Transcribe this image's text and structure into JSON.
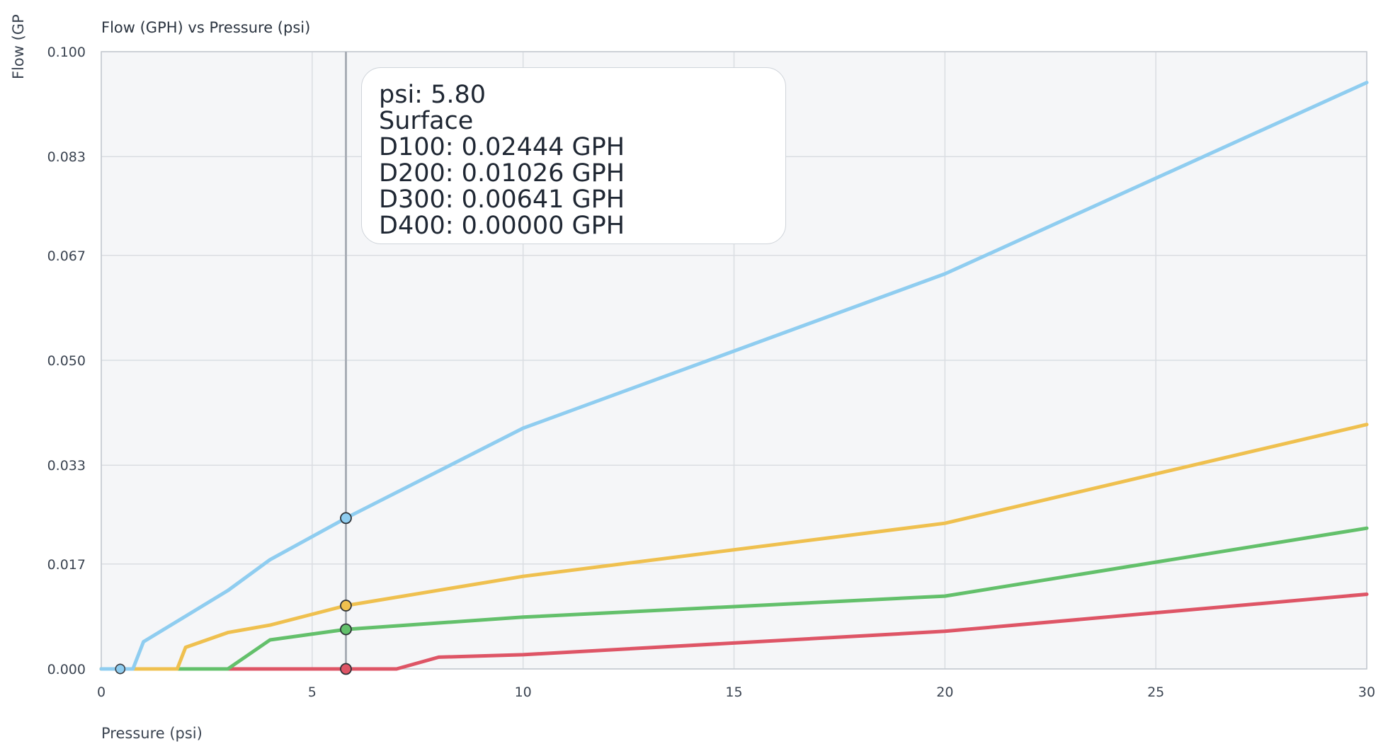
{
  "chart_data": {
    "type": "line",
    "title": "Flow (GPH) vs Pressure (psi)",
    "xlabel": "Pressure (psi)",
    "ylabel": "Flow (GP",
    "xlim": [
      0,
      30
    ],
    "ylim": [
      0,
      0.1
    ],
    "x_ticks": [
      "0",
      "5",
      "10",
      "15",
      "20",
      "25",
      "30"
    ],
    "y_ticks": [
      "0.000",
      "0.017",
      "0.033",
      "0.050",
      "0.067",
      "0.083",
      "0.100"
    ],
    "grid": true,
    "series": [
      {
        "name": "D100",
        "color": "#8fcdf0",
        "x": [
          0,
          0.75,
          1,
          3,
          4,
          5.8,
          10,
          20,
          30
        ],
        "y": [
          0,
          0,
          0.0044,
          0.0127,
          0.0177,
          0.02444,
          0.039,
          0.064,
          0.095
        ]
      },
      {
        "name": "D200",
        "color": "#efc04f",
        "x": [
          0,
          1.8,
          2,
          3,
          4,
          5.8,
          10,
          20,
          30
        ],
        "y": [
          0,
          0,
          0.0035,
          0.0059,
          0.0071,
          0.01026,
          0.015,
          0.0236,
          0.0396
        ]
      },
      {
        "name": "D300",
        "color": "#63c06b",
        "x": [
          0,
          3,
          4,
          5.8,
          10,
          20,
          30
        ],
        "y": [
          0,
          0,
          0.0047,
          0.00641,
          0.0084,
          0.0118,
          0.0228
        ]
      },
      {
        "name": "D400",
        "color": "#de5566",
        "x": [
          0,
          7,
          8,
          10,
          20,
          30
        ],
        "y": [
          0,
          0,
          0.0019,
          0.0023,
          0.0061,
          0.0121
        ]
      }
    ],
    "hover": {
      "x": 5.8
    }
  },
  "tooltip": {
    "psi": "psi: 5.80",
    "label": "Surface",
    "rows": [
      "D100: 0.02444 GPH",
      "D200: 0.01026 GPH",
      "D300: 0.00641 GPH",
      "D400: 0.00000 GPH"
    ]
  }
}
